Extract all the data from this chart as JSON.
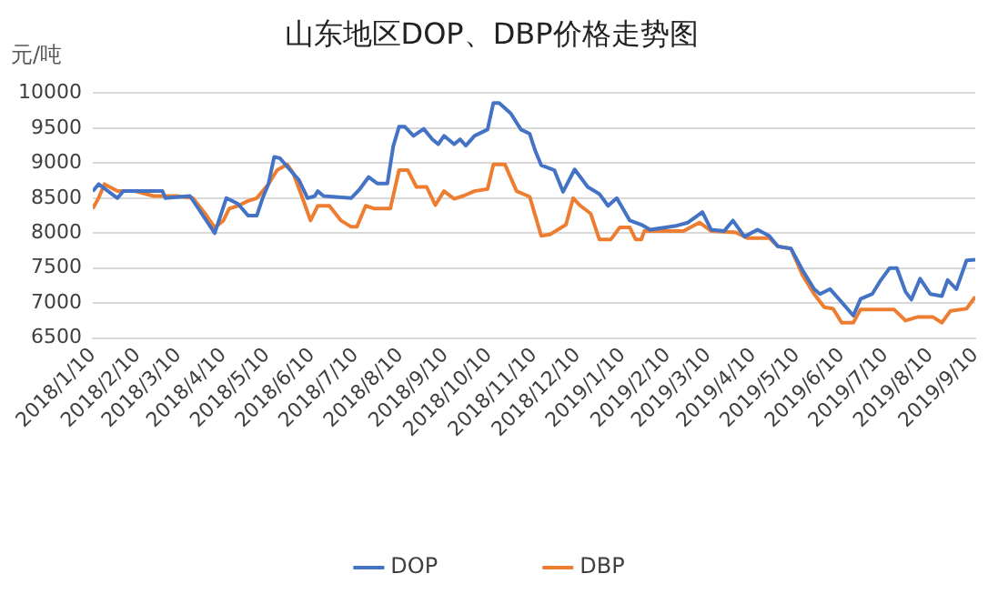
{
  "chart_data": {
    "type": "line",
    "title": "山东地区DOP、DBP价格走势图",
    "ylabel": "元/吨",
    "xlim": [
      "2018-01-10",
      "2019-09-10"
    ],
    "xticks": [
      {
        "value": "2018-01-10",
        "label": "2018/1/10"
      },
      {
        "value": "2018-02-10",
        "label": "2018/2/10"
      },
      {
        "value": "2018-03-10",
        "label": "2018/3/10"
      },
      {
        "value": "2018-04-10",
        "label": "2018/4/10"
      },
      {
        "value": "2018-05-10",
        "label": "2018/5/10"
      },
      {
        "value": "2018-06-10",
        "label": "2018/6/10"
      },
      {
        "value": "2018-07-10",
        "label": "2018/7/10"
      },
      {
        "value": "2018-08-10",
        "label": "2018/8/10"
      },
      {
        "value": "2018-09-10",
        "label": "2018/9/10"
      },
      {
        "value": "2018-10-10",
        "label": "2018/10/10"
      },
      {
        "value": "2018-11-10",
        "label": "2018/11/10"
      },
      {
        "value": "2018-12-10",
        "label": "2018/12/10"
      },
      {
        "value": "2019-01-10",
        "label": "2019/1/10"
      },
      {
        "value": "2019-02-10",
        "label": "2019/2/10"
      },
      {
        "value": "2019-03-10",
        "label": "2019/3/10"
      },
      {
        "value": "2019-04-10",
        "label": "2019/4/10"
      },
      {
        "value": "2019-05-10",
        "label": "2019/5/10"
      },
      {
        "value": "2019-06-10",
        "label": "2019/6/10"
      },
      {
        "value": "2019-07-10",
        "label": "2019/7/10"
      },
      {
        "value": "2019-08-10",
        "label": "2019/8/10"
      },
      {
        "value": "2019-09-10",
        "label": "2019/9/10"
      }
    ],
    "ylim": [
      6500,
      10000
    ],
    "yticks": [
      6500,
      7000,
      7500,
      8000,
      8500,
      9000,
      9500,
      10000
    ],
    "grid": "y",
    "legend": "bottom",
    "marker": "none",
    "line_style": "solid",
    "series": [
      {
        "name": "DOP",
        "color": "#4472c4",
        "x": [
          "2018-01-10",
          "2018-01-14",
          "2018-01-27",
          "2018-01-31",
          "2018-02-27",
          "2018-03-01",
          "2018-03-18",
          "2018-04-04",
          "2018-04-12",
          "2018-04-20",
          "2018-04-27",
          "2018-05-03",
          "2018-05-07",
          "2018-05-11",
          "2018-05-15",
          "2018-05-19",
          "2018-05-26",
          "2018-06-01",
          "2018-06-07",
          "2018-06-12",
          "2018-06-14",
          "2018-06-18",
          "2018-07-07",
          "2018-07-13",
          "2018-07-19",
          "2018-07-25",
          "2018-08-01",
          "2018-08-05",
          "2018-08-09",
          "2018-08-13",
          "2018-08-19",
          "2018-08-26",
          "2018-09-01",
          "2018-09-05",
          "2018-09-09",
          "2018-09-16",
          "2018-09-20",
          "2018-09-24",
          "2018-09-30",
          "2018-10-09",
          "2018-10-13",
          "2018-10-17",
          "2018-10-25",
          "2018-11-01",
          "2018-11-07",
          "2018-11-11",
          "2018-11-15",
          "2018-11-24",
          "2018-11-30",
          "2018-12-08",
          "2018-12-17",
          "2018-12-25",
          "2018-12-31",
          "2019-01-06",
          "2019-01-15",
          "2019-01-23",
          "2019-01-29",
          "2019-02-15",
          "2019-02-24",
          "2019-03-06",
          "2019-03-12",
          "2019-03-21",
          "2019-03-27",
          "2019-04-04",
          "2019-04-13",
          "2019-04-21",
          "2019-04-27",
          "2019-05-06",
          "2019-05-14",
          "2019-05-22",
          "2019-05-26",
          "2019-06-02",
          "2019-06-08",
          "2019-06-18",
          "2019-06-23",
          "2019-07-01",
          "2019-07-07",
          "2019-07-13",
          "2019-07-18",
          "2019-07-24",
          "2019-07-28",
          "2019-08-03",
          "2019-08-10",
          "2019-08-18",
          "2019-08-22",
          "2019-08-28",
          "2019-09-04",
          "2019-09-10"
        ],
        "values": [
          8600,
          8700,
          8500,
          8600,
          8600,
          8500,
          8530,
          8000,
          8500,
          8420,
          8250,
          8250,
          8500,
          8700,
          9090,
          9070,
          8900,
          8760,
          8500,
          8530,
          8600,
          8530,
          8500,
          8630,
          8800,
          8710,
          8710,
          9240,
          9520,
          9520,
          9390,
          9490,
          9340,
          9270,
          9390,
          9270,
          9340,
          9250,
          9390,
          9480,
          9860,
          9860,
          9710,
          9480,
          9420,
          9170,
          8970,
          8900,
          8590,
          8910,
          8660,
          8560,
          8390,
          8500,
          8180,
          8120,
          8050,
          8100,
          8150,
          8300,
          8050,
          8030,
          8180,
          7950,
          8050,
          7960,
          7810,
          7780,
          7470,
          7200,
          7130,
          7200,
          7060,
          6820,
          7060,
          7130,
          7330,
          7500,
          7500,
          7160,
          7050,
          7350,
          7130,
          7100,
          7330,
          7200,
          7610,
          7620
        ]
      },
      {
        "name": "DBP",
        "color": "#ed7d31",
        "x": [
          "2018-01-10",
          "2018-01-14",
          "2018-01-18",
          "2018-01-27",
          "2018-02-08",
          "2018-02-21",
          "2018-03-09",
          "2018-03-20",
          "2018-03-28",
          "2018-04-04",
          "2018-04-10",
          "2018-04-14",
          "2018-04-20",
          "2018-04-27",
          "2018-05-03",
          "2018-05-11",
          "2018-05-17",
          "2018-05-24",
          "2018-05-28",
          "2018-06-03",
          "2018-06-09",
          "2018-06-14",
          "2018-06-22",
          "2018-06-30",
          "2018-07-07",
          "2018-07-11",
          "2018-07-17",
          "2018-07-23",
          "2018-08-03",
          "2018-08-09",
          "2018-08-15",
          "2018-08-21",
          "2018-08-28",
          "2018-09-03",
          "2018-09-09",
          "2018-09-16",
          "2018-09-22",
          "2018-09-30",
          "2018-10-09",
          "2018-10-13",
          "2018-10-21",
          "2018-10-29",
          "2018-11-07",
          "2018-11-15",
          "2018-11-21",
          "2018-12-02",
          "2018-12-07",
          "2018-12-12",
          "2018-12-19",
          "2018-12-25",
          "2019-01-02",
          "2019-01-08",
          "2019-01-15",
          "2019-01-19",
          "2019-01-23",
          "2019-01-25",
          "2019-02-21",
          "2019-03-04",
          "2019-03-12",
          "2019-03-29",
          "2019-04-06",
          "2019-04-21",
          "2019-04-27",
          "2019-05-06",
          "2019-05-14",
          "2019-05-22",
          "2019-05-29",
          "2019-06-04",
          "2019-06-10",
          "2019-06-18",
          "2019-06-23",
          "2019-07-16",
          "2019-07-24",
          "2019-08-01",
          "2019-08-12",
          "2019-08-18",
          "2019-08-24",
          "2019-09-04",
          "2019-09-10"
        ],
        "values": [
          8350,
          8500,
          8700,
          8600,
          8600,
          8530,
          8530,
          8500,
          8290,
          8080,
          8180,
          8350,
          8390,
          8460,
          8500,
          8700,
          8900,
          8980,
          8860,
          8530,
          8180,
          8390,
          8390,
          8180,
          8090,
          8090,
          8390,
          8350,
          8350,
          8900,
          8900,
          8660,
          8660,
          8400,
          8600,
          8490,
          8530,
          8600,
          8630,
          8980,
          8980,
          8600,
          8520,
          7960,
          7980,
          8120,
          8500,
          8390,
          8280,
          7910,
          7910,
          8080,
          8080,
          7910,
          7910,
          8030,
          8030,
          8150,
          8030,
          8010,
          7930,
          7930,
          7810,
          7780,
          7400,
          7130,
          6940,
          6920,
          6720,
          6720,
          6910,
          6910,
          6750,
          6800,
          6800,
          6720,
          6890,
          6920,
          7090
        ]
      }
    ]
  }
}
